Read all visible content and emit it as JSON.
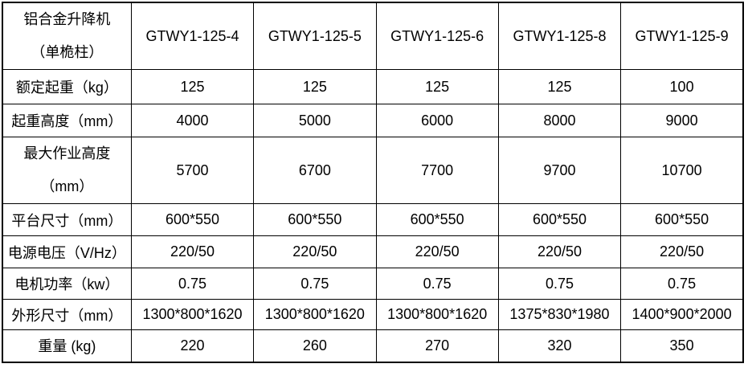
{
  "page": {
    "background": "#ffffff",
    "border_color": "#000000",
    "text_color": "#000000"
  },
  "table": {
    "header": {
      "product_line1": "铝合金升降机",
      "product_line2": "（单桅柱）",
      "models": [
        "GTWY1-125-4",
        "GTWY1-125-5",
        "GTWY1-125-6",
        "GTWY1-125-8",
        "GTWY1-125-9"
      ]
    },
    "rows": [
      {
        "label": "额定起重（kg）",
        "values": [
          "125",
          "125",
          "125",
          "125",
          "100"
        ]
      },
      {
        "label": "起重高度（mm）",
        "values": [
          "4000",
          "5000",
          "6000",
          "8000",
          "9000"
        ]
      },
      {
        "label": "最大作业高度",
        "label_line2": "（mm）",
        "values": [
          "5700",
          "6700",
          "7700",
          "9700",
          "10700"
        ]
      },
      {
        "label": "平台尺寸（mm）",
        "values": [
          "600*550",
          "600*550",
          "600*550",
          "600*550",
          "600*550"
        ]
      },
      {
        "label": "电源电压（V/Hz）",
        "values": [
          "220/50",
          "220/50",
          "220/50",
          "220/50",
          "220/50"
        ]
      },
      {
        "label": "电机功率（kw）",
        "values": [
          "0.75",
          "0.75",
          "0.75",
          "0.75",
          "0.75"
        ]
      },
      {
        "label": "外形尺寸（mm）",
        "values": [
          "1300*800*1620",
          "1300*800*1620",
          "1300*800*1620",
          "1375*830*1980",
          "1400*900*2000"
        ]
      },
      {
        "label": "重量 (kg)",
        "values": [
          "220",
          "260",
          "270",
          "320",
          "350"
        ]
      }
    ]
  }
}
